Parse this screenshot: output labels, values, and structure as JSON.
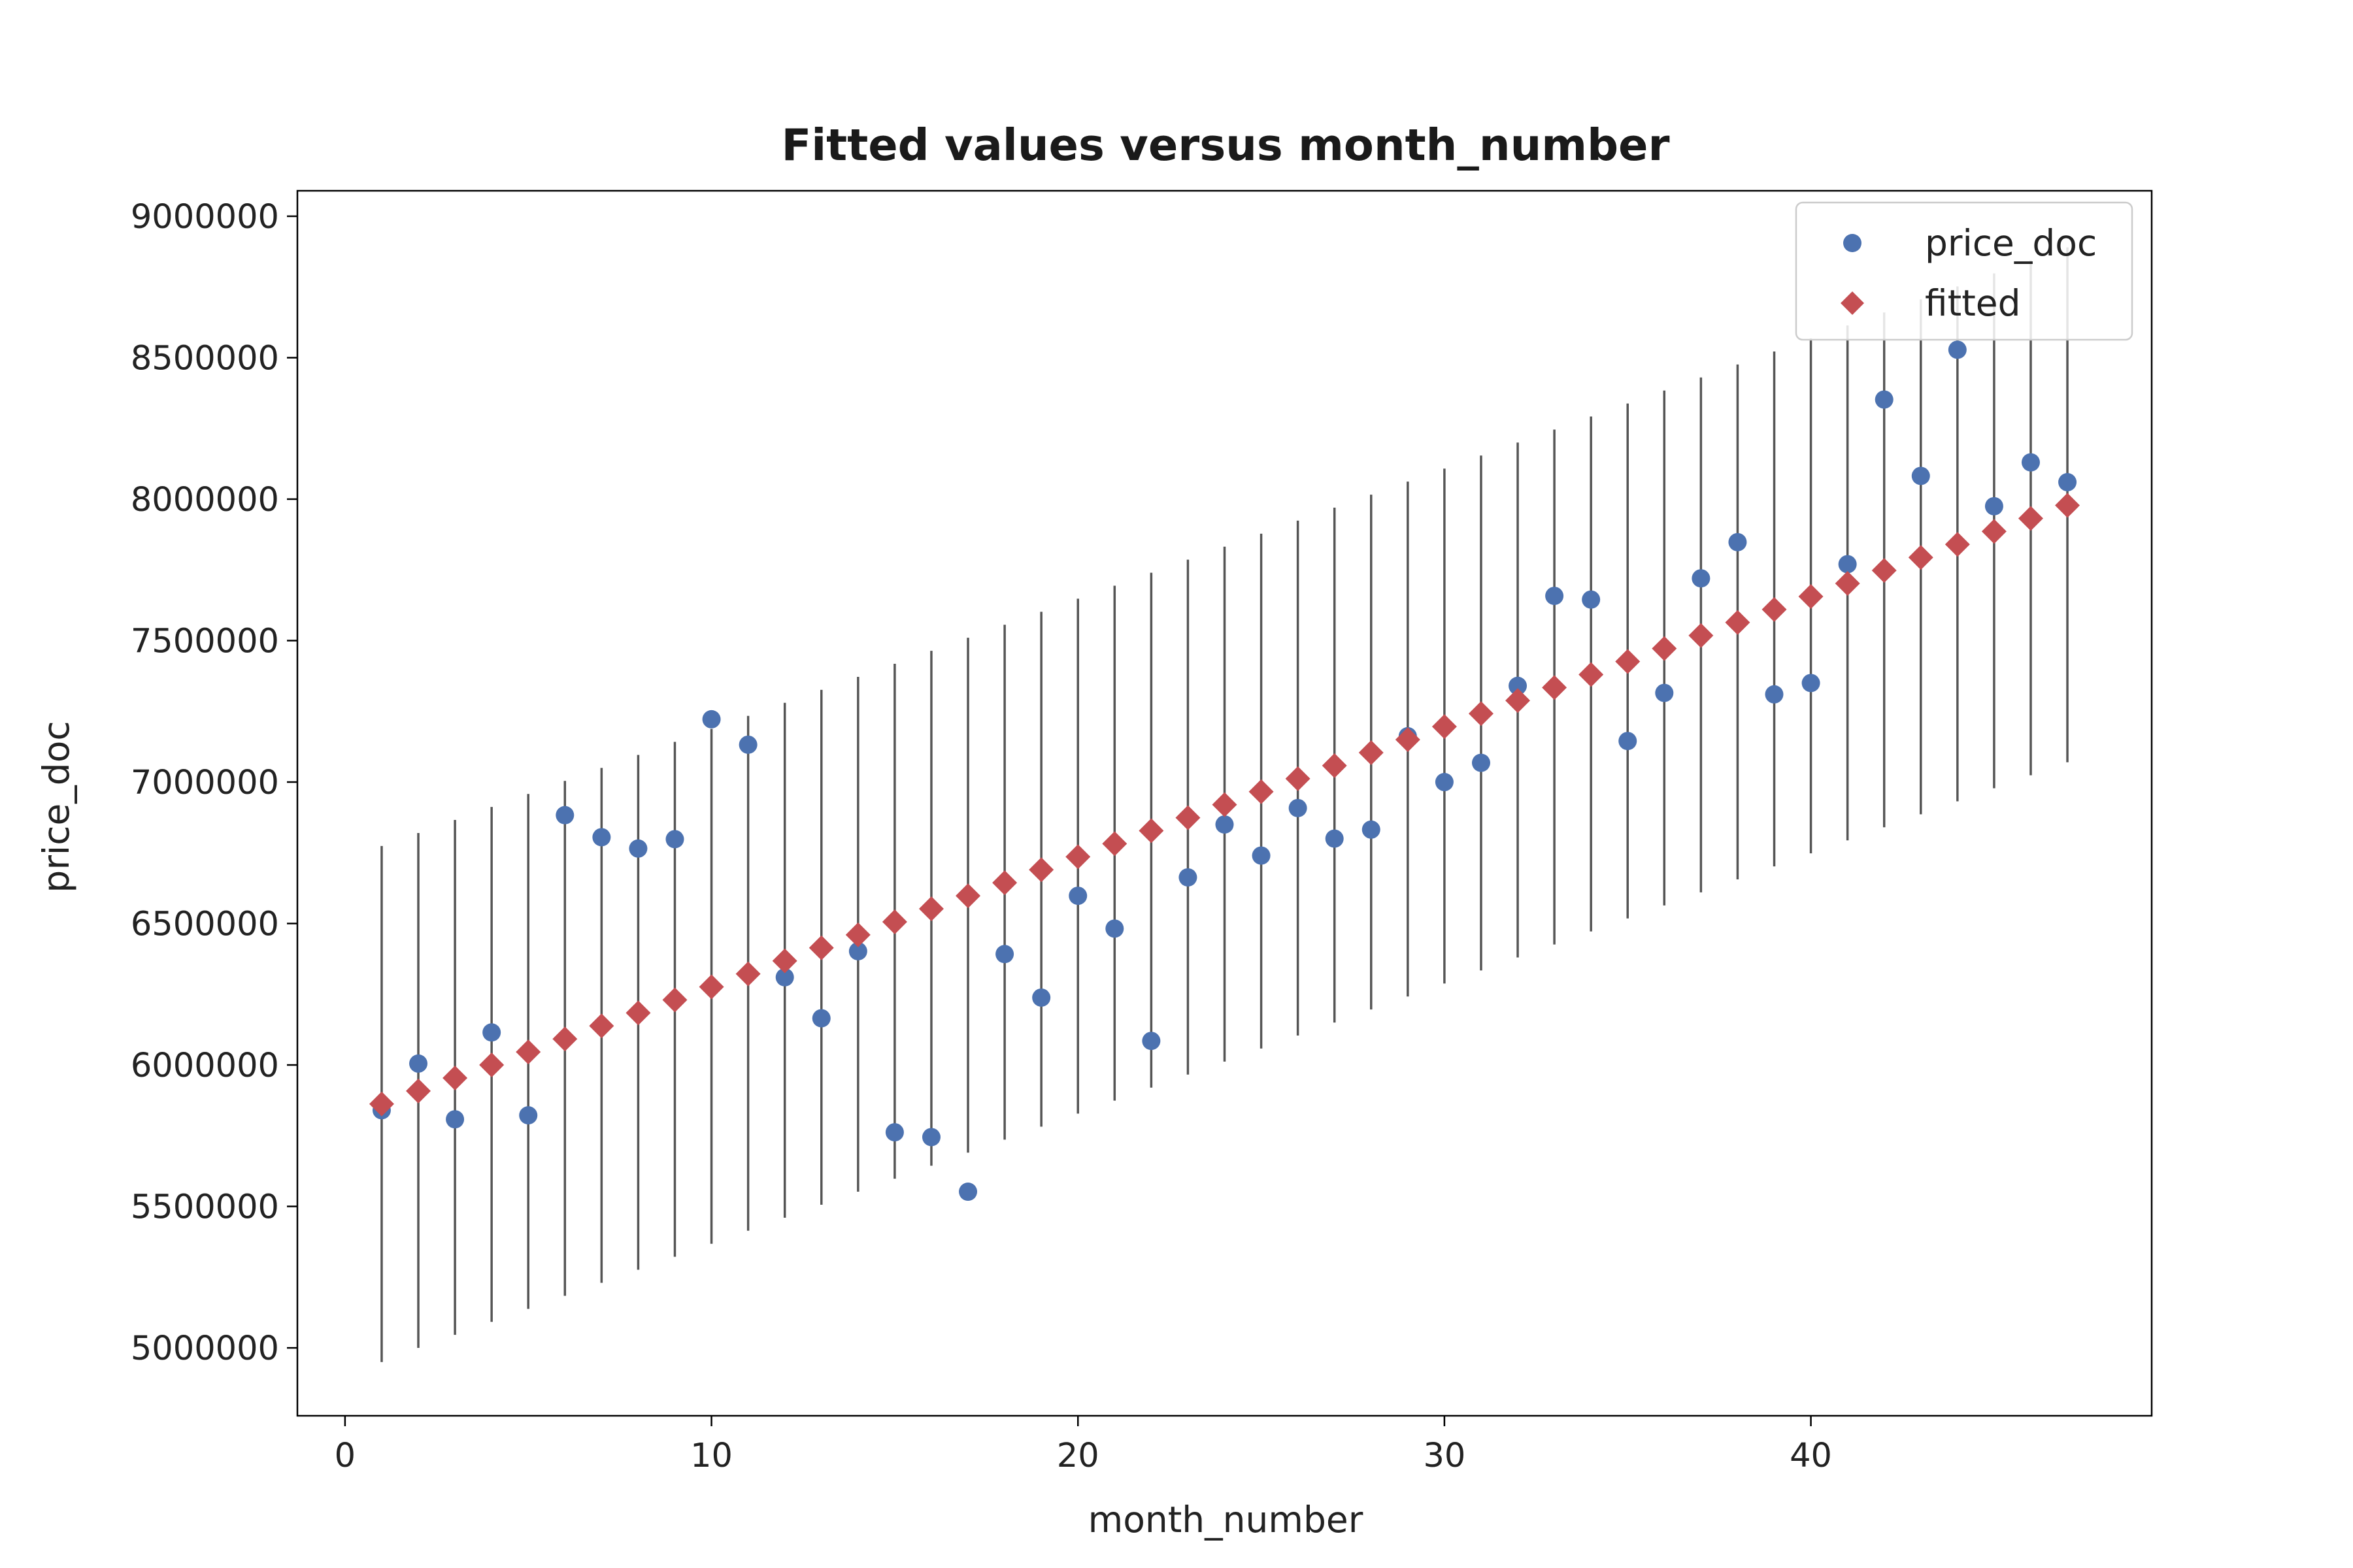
{
  "chart_data": {
    "type": "scatter",
    "title": "Fitted values versus month_number",
    "xlabel": "month_number",
    "ylabel": "price_doc",
    "xlim": [
      -1.3,
      49.3
    ],
    "ylim": [
      4760000,
      9090000
    ],
    "xticks": [
      0,
      10,
      20,
      30,
      40
    ],
    "yticks": [
      5000000,
      5500000,
      6000000,
      6500000,
      7000000,
      7500000,
      8000000,
      8500000,
      9000000
    ],
    "grid": false,
    "legend": {
      "placement": "top-right",
      "entries": [
        "price_doc",
        "fitted"
      ]
    },
    "x": [
      1,
      2,
      3,
      4,
      5,
      6,
      7,
      8,
      9,
      10,
      11,
      12,
      13,
      14,
      15,
      16,
      17,
      18,
      19,
      20,
      21,
      22,
      23,
      24,
      25,
      26,
      27,
      28,
      29,
      30,
      31,
      32,
      33,
      34,
      35,
      36,
      37,
      38,
      39,
      40,
      41,
      42,
      43,
      44,
      45,
      46,
      47
    ],
    "series": [
      {
        "name": "price_doc",
        "color": "#4c72b0",
        "marker": "circle",
        "values": [
          5840000,
          6005000,
          5808000,
          6115000,
          5822000,
          6883000,
          6805000,
          6765000,
          6798000,
          7222000,
          7132000,
          6310000,
          6165000,
          6402000,
          5762000,
          5745000,
          5552000,
          6392000,
          6238000,
          6598000,
          6482000,
          6085000,
          6663000,
          6850000,
          6740000,
          6908000,
          6800000,
          6832000,
          7162000,
          7000000,
          7068000,
          7340000,
          7658000,
          7645000,
          7145000,
          7315000,
          7720000,
          7848000,
          7310000,
          7350000,
          7770000,
          8352000,
          8082000,
          8528000,
          7975000,
          8130000,
          8060000
        ]
      },
      {
        "name": "fitted",
        "color": "#c44e52",
        "marker": "diamond",
        "values": [
          5862000,
          5908000,
          5954000,
          6000000,
          6046000,
          6092000,
          6138000,
          6184000,
          6230000,
          6276000,
          6322000,
          6368000,
          6414000,
          6460000,
          6506000,
          6552000,
          6598000,
          6644000,
          6690000,
          6736000,
          6782000,
          6828000,
          6874000,
          6920000,
          6966000,
          7012000,
          7058000,
          7104000,
          7150000,
          7196000,
          7242000,
          7288000,
          7334000,
          7380000,
          7426000,
          7472000,
          7518000,
          7564000,
          7610000,
          7656000,
          7702000,
          7748000,
          7794000,
          7840000,
          7886000,
          7932000,
          7978000
        ]
      }
    ],
    "error_bars": {
      "color": "#555555",
      "lower": [
        4950000,
        5000000,
        5046000,
        5092000,
        5138000,
        5184000,
        5230000,
        5276000,
        5322000,
        5368000,
        5414000,
        5460000,
        5506000,
        5552000,
        5598000,
        5644000,
        5690000,
        5736000,
        5782000,
        5828000,
        5874000,
        5920000,
        5966000,
        6012000,
        6058000,
        6104000,
        6150000,
        6196000,
        6242000,
        6288000,
        6334000,
        6380000,
        6426000,
        6472000,
        6518000,
        6564000,
        6610000,
        6656000,
        6702000,
        6748000,
        6794000,
        6840000,
        6886000,
        6932000,
        6978000,
        7024000,
        7070000
      ],
      "upper": [
        6774000,
        6820000,
        6866000,
        6912000,
        6958000,
        7004000,
        7050000,
        7096000,
        7142000,
        7188000,
        7234000,
        7280000,
        7326000,
        7372000,
        7418000,
        7464000,
        7510000,
        7556000,
        7602000,
        7648000,
        7694000,
        7740000,
        7786000,
        7832000,
        7878000,
        7924000,
        7970000,
        8016000,
        8062000,
        8108000,
        8154000,
        8200000,
        8246000,
        8292000,
        8338000,
        8384000,
        8430000,
        8476000,
        8522000,
        8568000,
        8614000,
        8660000,
        8706000,
        8752000,
        8798000,
        8844000,
        8890000
      ]
    }
  }
}
